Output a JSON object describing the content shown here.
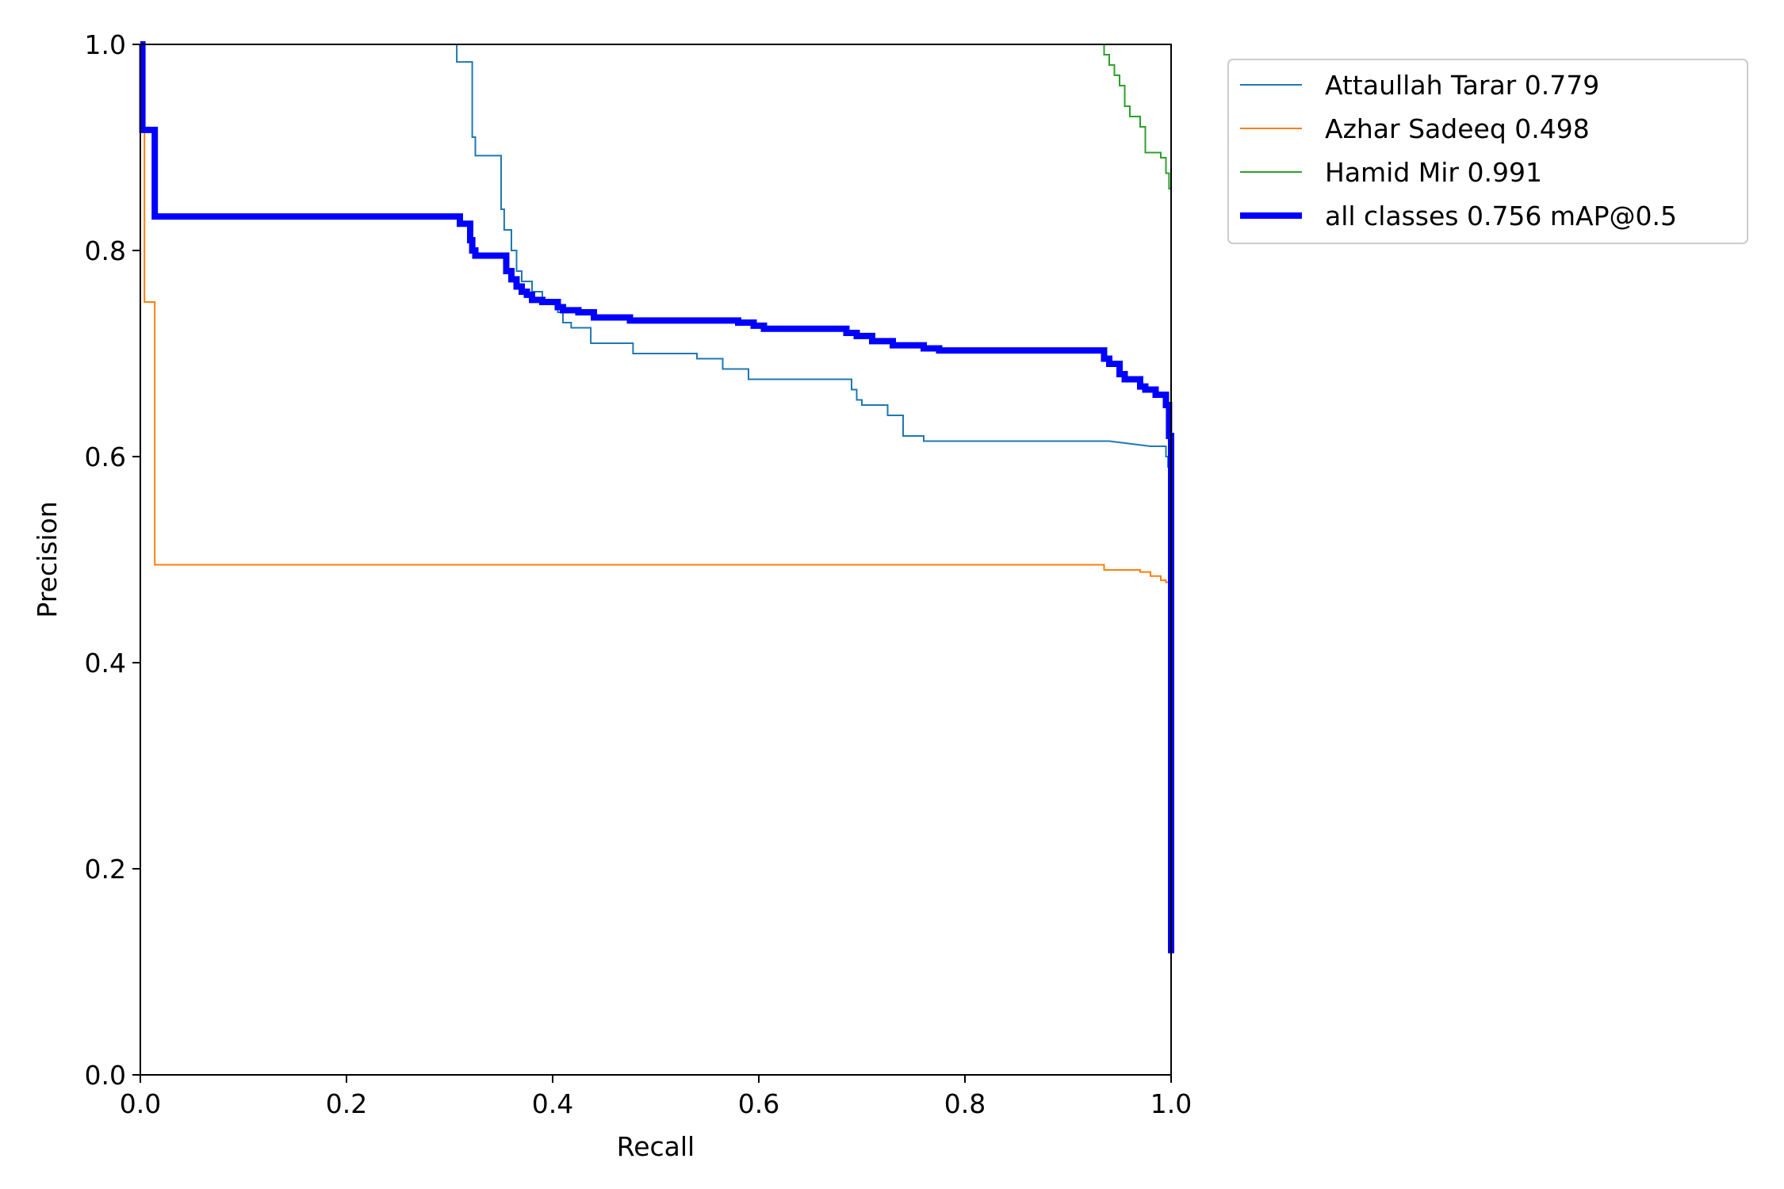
{
  "chart_data": {
    "type": "line",
    "title": "",
    "xlabel": "Recall",
    "ylabel": "Precision",
    "xlim": [
      0,
      1
    ],
    "ylim": [
      0,
      1
    ],
    "xticks": [
      "0.0",
      "0.2",
      "0.4",
      "0.6",
      "0.8",
      "1.0"
    ],
    "yticks": [
      "0.0",
      "0.2",
      "0.4",
      "0.6",
      "0.8",
      "1.0"
    ],
    "grid": false,
    "legend_position": "outside top-right",
    "series": [
      {
        "name": "Attaullah Tarar 0.779",
        "color": "#1f77b4",
        "x": [
          0.305,
          0.307,
          0.307,
          0.322,
          0.322,
          0.325,
          0.325,
          0.35,
          0.35,
          0.353,
          0.353,
          0.36,
          0.36,
          0.365,
          0.365,
          0.37,
          0.37,
          0.38,
          0.38,
          0.39,
          0.39,
          0.405,
          0.405,
          0.41,
          0.41,
          0.418,
          0.418,
          0.437,
          0.437,
          0.437,
          0.478,
          0.478,
          0.54,
          0.54,
          0.565,
          0.565,
          0.59,
          0.59,
          0.6,
          0.6,
          0.69,
          0.69,
          0.695,
          0.695,
          0.7,
          0.7,
          0.725,
          0.725,
          0.74,
          0.74,
          0.76,
          0.76,
          0.775,
          0.775,
          0.94,
          0.98,
          0.98,
          0.995,
          0.995,
          0.997,
          0.997,
          1.0
        ],
        "y": [
          1.0,
          1.0,
          0.983,
          0.983,
          0.91,
          0.91,
          0.892,
          0.892,
          0.84,
          0.84,
          0.82,
          0.82,
          0.8,
          0.8,
          0.78,
          0.78,
          0.77,
          0.77,
          0.76,
          0.76,
          0.75,
          0.75,
          0.74,
          0.74,
          0.73,
          0.73,
          0.725,
          0.725,
          0.71,
          0.71,
          0.71,
          0.7,
          0.7,
          0.695,
          0.695,
          0.685,
          0.685,
          0.675,
          0.675,
          0.675,
          0.675,
          0.665,
          0.665,
          0.655,
          0.655,
          0.65,
          0.65,
          0.64,
          0.64,
          0.62,
          0.62,
          0.615,
          0.615,
          0.615,
          0.615,
          0.61,
          0.61,
          0.61,
          0.6,
          0.6,
          0.59,
          0.59
        ]
      },
      {
        "name": "Azhar Sadeeq 0.498",
        "color": "#ff7f0e",
        "x": [
          0.0,
          0.002,
          0.002,
          0.004,
          0.004,
          0.014,
          0.014,
          0.935,
          0.935,
          0.97,
          0.97,
          0.98,
          0.98,
          0.99,
          0.99,
          0.995,
          0.995,
          1.0
        ],
        "y": [
          1.0,
          1.0,
          0.92,
          0.92,
          0.75,
          0.75,
          0.495,
          0.495,
          0.49,
          0.49,
          0.488,
          0.488,
          0.484,
          0.484,
          0.48,
          0.48,
          0.478,
          0.478
        ]
      },
      {
        "name": "Hamid Mir 0.991",
        "color": "#2ca02c",
        "x": [
          0.935,
          0.935,
          0.94,
          0.94,
          0.945,
          0.945,
          0.95,
          0.95,
          0.955,
          0.955,
          0.96,
          0.96,
          0.97,
          0.97,
          0.975,
          0.975,
          0.99,
          0.99,
          0.995,
          0.995,
          0.998,
          0.998,
          1.0,
          1.0
        ],
        "y": [
          1.0,
          0.99,
          0.99,
          0.98,
          0.98,
          0.97,
          0.97,
          0.96,
          0.96,
          0.94,
          0.94,
          0.93,
          0.93,
          0.92,
          0.92,
          0.895,
          0.895,
          0.89,
          0.89,
          0.875,
          0.875,
          0.86,
          0.86,
          0.66
        ]
      },
      {
        "name": "all classes 0.756 mAP@0.5",
        "color": "#0000ff",
        "x": [
          0.0,
          0.002,
          0.002,
          0.004,
          0.004,
          0.014,
          0.014,
          0.305,
          0.305,
          0.31,
          0.31,
          0.32,
          0.32,
          0.322,
          0.322,
          0.325,
          0.325,
          0.355,
          0.355,
          0.36,
          0.36,
          0.365,
          0.365,
          0.37,
          0.37,
          0.375,
          0.375,
          0.38,
          0.38,
          0.39,
          0.39,
          0.405,
          0.405,
          0.41,
          0.41,
          0.425,
          0.425,
          0.44,
          0.44,
          0.475,
          0.475,
          0.55,
          0.55,
          0.58,
          0.58,
          0.595,
          0.595,
          0.605,
          0.605,
          0.685,
          0.685,
          0.695,
          0.695,
          0.71,
          0.71,
          0.73,
          0.73,
          0.76,
          0.76,
          0.775,
          0.775,
          0.935,
          0.935,
          0.94,
          0.94,
          0.95,
          0.95,
          0.955,
          0.955,
          0.97,
          0.97,
          0.975,
          0.975,
          0.985,
          0.985,
          0.995,
          0.995,
          0.998,
          0.998,
          1.0,
          1.0
        ],
        "y": [
          1.0,
          1.0,
          0.917,
          0.917,
          0.917,
          0.917,
          0.833,
          0.833,
          0.833,
          0.833,
          0.826,
          0.826,
          0.81,
          0.81,
          0.8,
          0.8,
          0.795,
          0.795,
          0.78,
          0.78,
          0.772,
          0.772,
          0.765,
          0.765,
          0.76,
          0.76,
          0.757,
          0.757,
          0.752,
          0.752,
          0.75,
          0.75,
          0.745,
          0.745,
          0.742,
          0.742,
          0.74,
          0.74,
          0.735,
          0.735,
          0.732,
          0.732,
          0.732,
          0.732,
          0.73,
          0.73,
          0.727,
          0.727,
          0.724,
          0.724,
          0.72,
          0.72,
          0.717,
          0.717,
          0.712,
          0.712,
          0.708,
          0.708,
          0.705,
          0.705,
          0.703,
          0.703,
          0.695,
          0.695,
          0.69,
          0.69,
          0.68,
          0.68,
          0.675,
          0.675,
          0.668,
          0.668,
          0.665,
          0.665,
          0.66,
          0.66,
          0.65,
          0.65,
          0.62,
          0.62,
          0.118
        ]
      }
    ]
  }
}
